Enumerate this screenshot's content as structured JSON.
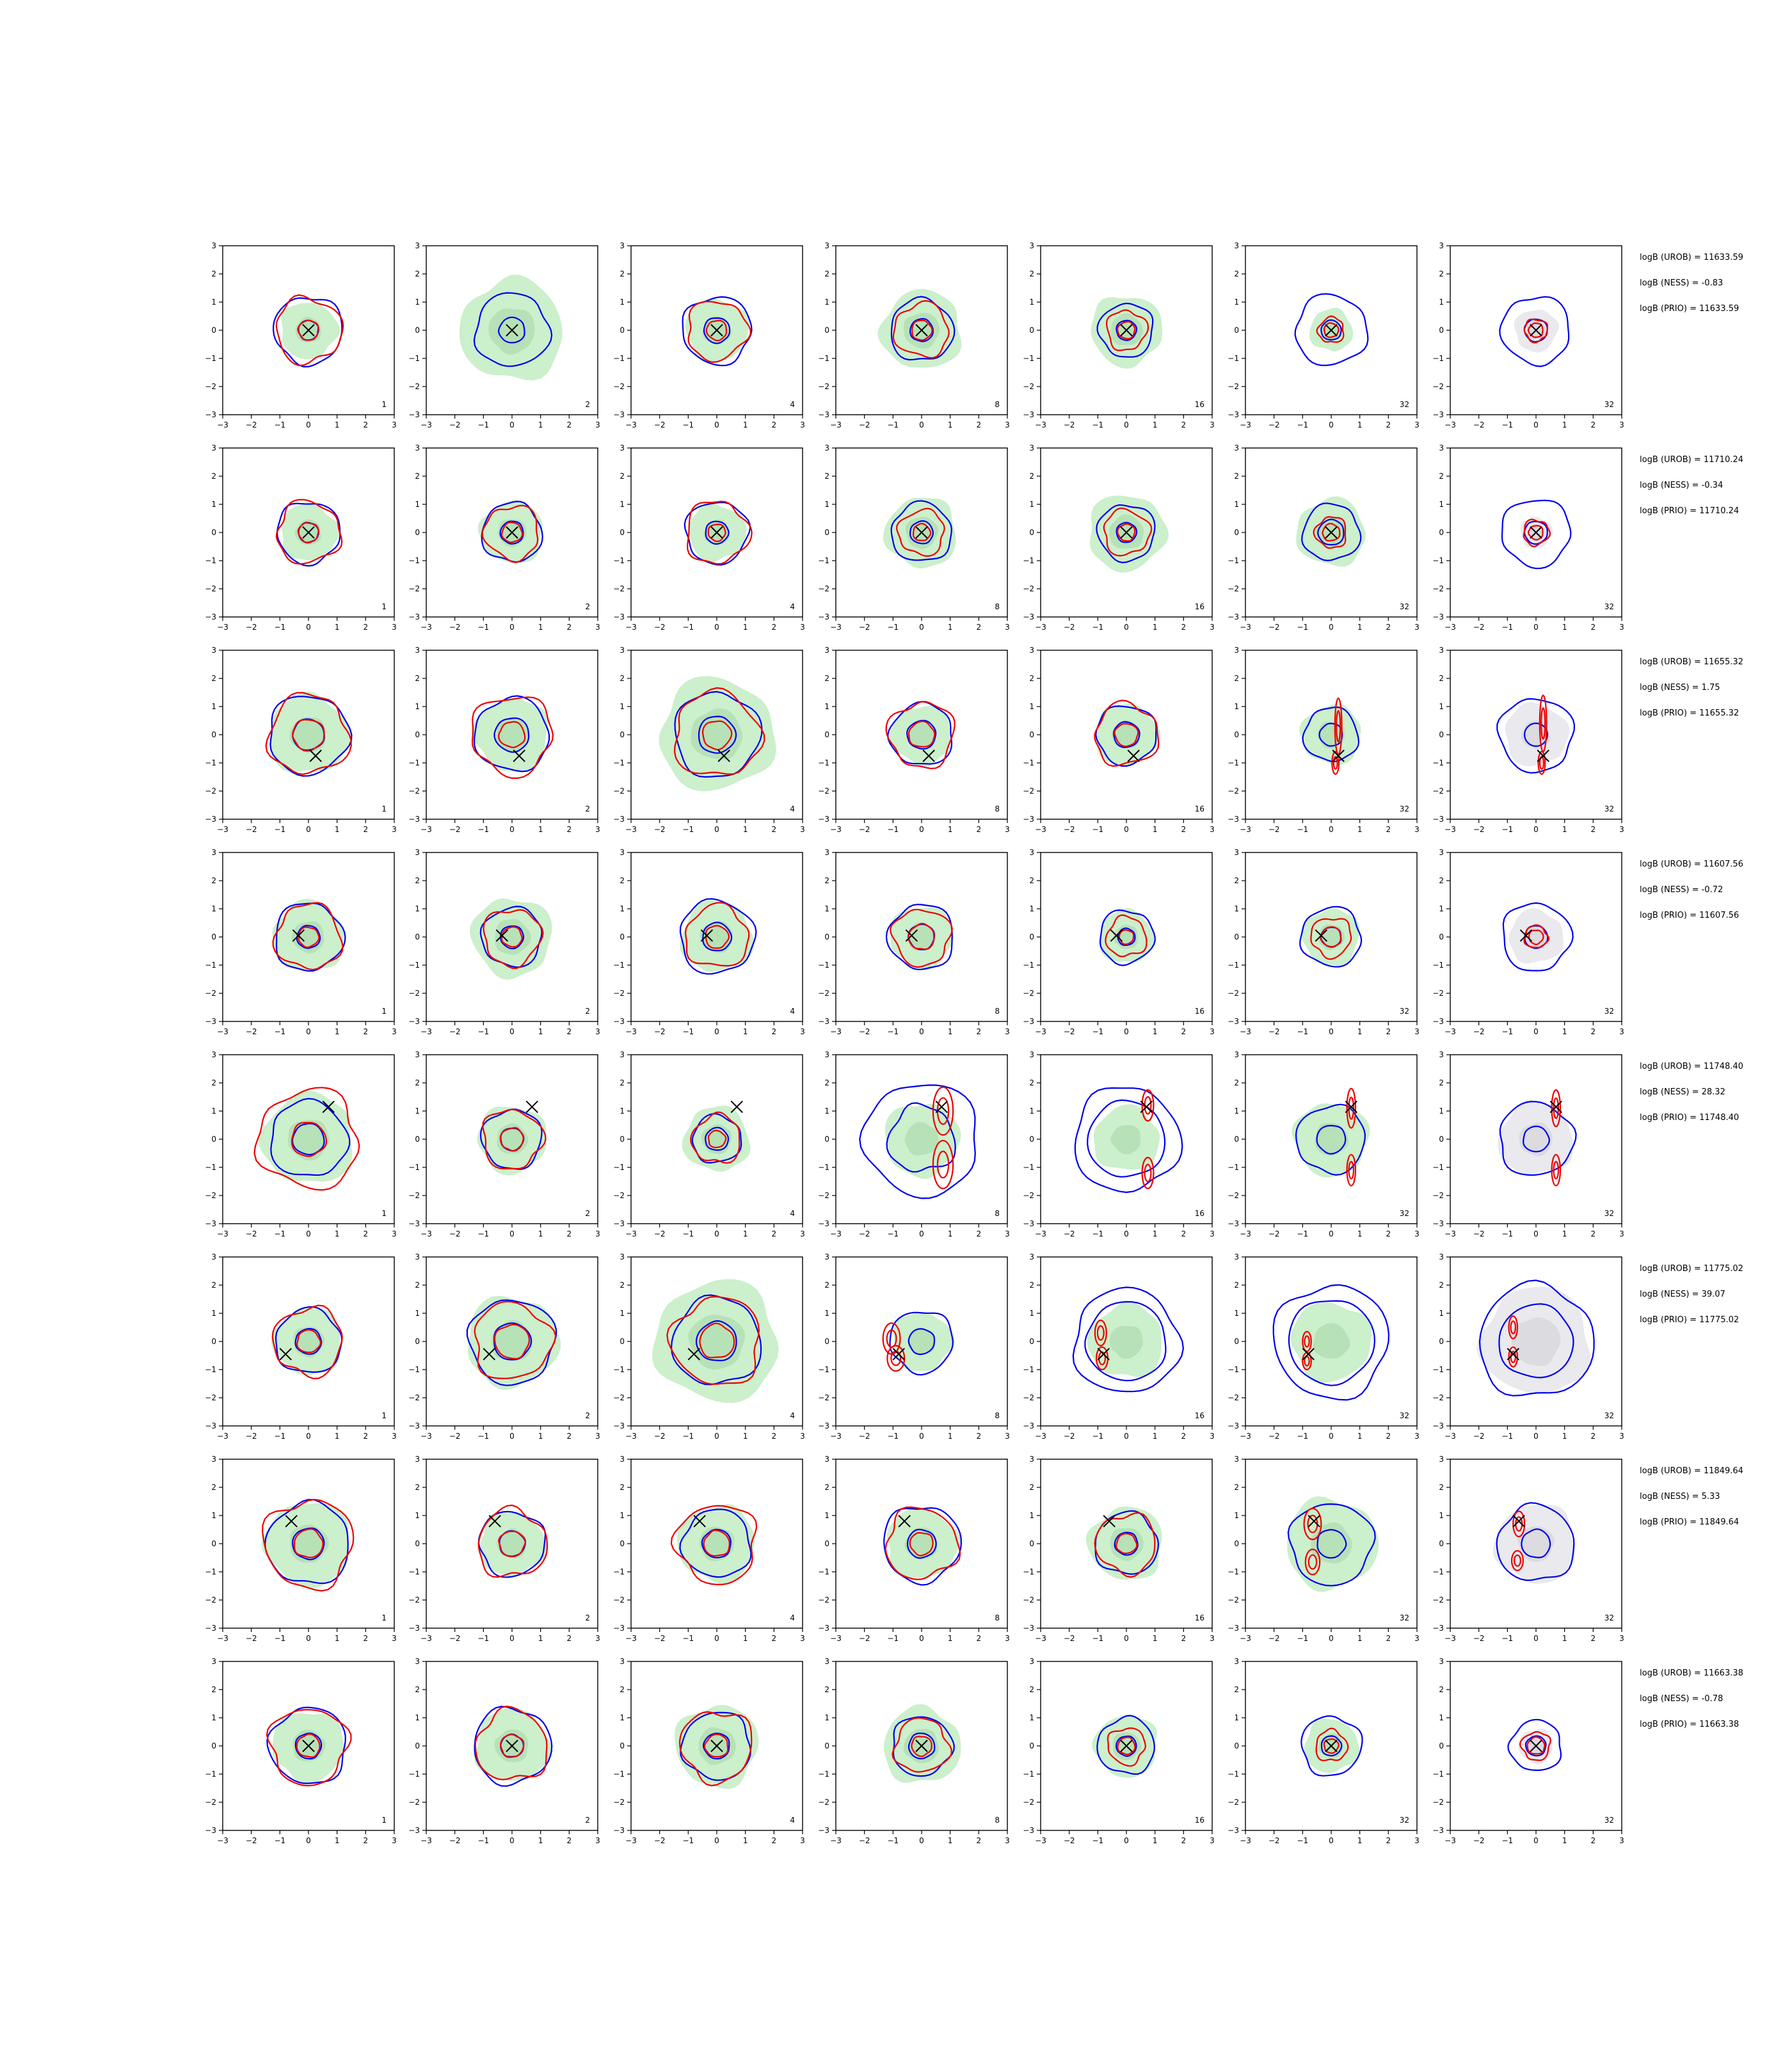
{
  "chart_data": {
    "type": "contour-grid",
    "xlim": [
      -3,
      3
    ],
    "ylim": [
      -3,
      3
    ],
    "xticks": [
      "−3",
      "−2",
      "−1",
      "0",
      "1",
      "2",
      "3"
    ],
    "yticks": [
      "−3",
      "−2",
      "−1",
      "0",
      "1",
      "2",
      "3"
    ],
    "columns": [
      {
        "label": "1"
      },
      {
        "label": "2"
      },
      {
        "label": "4"
      },
      {
        "label": "8"
      },
      {
        "label": "16"
      },
      {
        "label": "32"
      },
      {
        "label": "32",
        "grey": true
      }
    ],
    "colors": {
      "fill_green": "#ccefcc",
      "fill_green_inner": "#aedcae",
      "fill_grey": "#e9e9ee",
      "fill_grey_inner": "#d4d4da",
      "blue": "#0000ee",
      "red": "#ee0000",
      "marker": "#000000"
    },
    "rows": [
      {
        "marker": [
          0.0,
          0.0
        ],
        "stats": [
          "logB (UROB) = 11633.59",
          "logB (NESS) = -0.83",
          "logB (PRIO) = 11633.59"
        ],
        "panels": [
          {
            "green": 1.0,
            "blue": [
              1.2,
              0.35
            ],
            "red": [
              1.15,
              0.35
            ]
          },
          {
            "green": 1.8,
            "blue": [
              1.3,
              0.45
            ],
            "red": []
          },
          {
            "green": 1.1,
            "blue": [
              1.2,
              0.45
            ],
            "red": [
              1.05,
              0.35
            ]
          },
          {
            "green": 1.4,
            "blue": [
              1.1,
              0.4
            ],
            "red": [
              0.95,
              0.35
            ]
          },
          {
            "green": 1.25,
            "blue": [
              0.95,
              0.35
            ],
            "red": [
              0.7,
              0.3
            ]
          },
          {
            "green": 0.75,
            "blue": [
              1.25,
              0.35
            ],
            "red": [
              0.45,
              0.25
            ]
          },
          {
            "green": 0.75,
            "blue": [
              1.2,
              0.4
            ],
            "red": [
              0.4,
              0.25
            ]
          }
        ]
      },
      {
        "marker": [
          0.0,
          0.0
        ],
        "stats": [
          "logB (UROB) = 11710.24",
          "logB (NESS) = -0.34",
          "logB (PRIO) = 11710.24"
        ],
        "panels": [
          {
            "green": 1.0,
            "blue": [
              1.1,
              0.35
            ],
            "red": [
              1.1,
              0.35
            ]
          },
          {
            "green": 1.1,
            "blue": [
              1.05,
              0.4
            ],
            "red": [
              0.95,
              0.35
            ]
          },
          {
            "green": 1.0,
            "blue": [
              1.1,
              0.4
            ],
            "red": [
              1.1,
              0.3
            ]
          },
          {
            "green": 1.25,
            "blue": [
              1.05,
              0.4
            ],
            "red": [
              0.8,
              0.3
            ]
          },
          {
            "green": 1.35,
            "blue": [
              1.0,
              0.35
            ],
            "red": [
              0.8,
              0.3
            ]
          },
          {
            "green": 1.2,
            "blue": [
              1.0,
              0.45
            ],
            "red": [
              0.55,
              0.3
            ]
          },
          {
            "green": 0.55,
            "blue": [
              1.2,
              0.4
            ],
            "red": [
              0.45,
              0.25
            ]
          }
        ]
      },
      {
        "marker": [
          0.25,
          -0.75
        ],
        "stats": [
          "logB (UROB) = 11655.32",
          "logB (NESS) = 1.75",
          "logB (PRIO) = 11655.32"
        ],
        "panels": [
          {
            "green": 1.4,
            "blue": [
              1.4,
              0.55
            ],
            "red": [
              1.4,
              0.55
            ]
          },
          {
            "green": 1.3,
            "blue": [
              1.3,
              0.6
            ],
            "red": [
              1.4,
              0.45
            ]
          },
          {
            "green": 2.0,
            "blue": [
              1.5,
              0.65
            ],
            "red": [
              1.5,
              0.5
            ]
          },
          {
            "green": 1.05,
            "blue": [
              1.1,
              0.5
            ],
            "red": [
              1.15,
              0.45
            ]
          },
          {
            "green": 1.1,
            "blue": [
              1.05,
              0.45
            ],
            "red": [
              1.1,
              0.4
            ]
          },
          {
            "green": 1.05,
            "blue": [
              0.95,
              0.4
            ],
            "red": [],
            "red_ellipses": [
              [
                0.25,
                0.3,
                0.12,
                1.0
              ],
              [
                0.15,
                -1.0,
                0.12,
                0.4
              ]
            ]
          },
          {
            "green": 1.1,
            "blue": [],
            "red": [],
            "blue_small": 0.4,
            "red_ellipses": [
              [
                0.25,
                0.4,
                0.12,
                1.0
              ],
              [
                0.2,
                -1.0,
                0.12,
                0.4
              ]
            ]
          }
        ]
      },
      {
        "marker": [
          -0.35,
          0.05
        ],
        "stats": [
          "logB (UROB) = 11607.56",
          "logB (NESS) = -0.72",
          "logB (PRIO) = 11607.56"
        ],
        "panels": [
          {
            "green": 1.25,
            "blue": [
              1.2,
              0.4
            ],
            "red": [
              1.15,
              0.35
            ]
          },
          {
            "green": 1.4,
            "blue": [
              1.05,
              0.4
            ],
            "red": [
              1.0,
              0.35
            ]
          },
          {
            "green": 1.25,
            "blue": [
              1.3,
              0.5
            ],
            "red": [
              1.1,
              0.4
            ]
          },
          {
            "green": 1.1,
            "blue": [
              1.15,
              0.45
            ],
            "red": [
              1.0,
              0.45
            ]
          },
          {
            "green": 0.95,
            "blue": [
              0.95,
              0.3
            ],
            "red": [
              0.7,
              0.25
            ]
          },
          {
            "green": 1.0,
            "blue": [
              1.05,
              0.35
            ],
            "red": [
              0.7,
              0.35
            ]
          },
          {
            "green": 0.95,
            "blue": [
              1.2,
              0.4
            ],
            "red": [
              0.4,
              0.25
            ]
          }
        ]
      },
      {
        "marker": [
          0.7,
          1.15
        ],
        "stats": [
          "logB (UROB) = 11748.40",
          "logB (NESS) = 28.32",
          "logB (PRIO) = 11748.40"
        ],
        "panels": [
          {
            "green": 1.6,
            "blue": [
              1.35,
              0.55
            ],
            "red": [
              1.75,
              0.6
            ]
          },
          {
            "green": 1.2,
            "blue": [
              1.05,
              0.4
            ],
            "red": [
              1.05,
              0.4
            ]
          },
          {
            "green": 1.15,
            "blue": [
              0.85,
              0.4
            ],
            "red": [
              0.85,
              0.3
            ]
          },
          {
            "green": 1.3,
            "blue": [
              2.0,
              0.0
            ],
            "blue_r2": 1.95,
            "red": [],
            "red_ellipses": [
              [
                0.75,
                1.0,
                0.35,
                0.85
              ],
              [
                0.75,
                -0.9,
                0.35,
                0.85
              ]
            ]
          },
          {
            "green": 1.15,
            "blue": [
              1.85,
              1.35
            ],
            "red": [],
            "red_ellipses": [
              [
                0.75,
                1.2,
                0.2,
                0.55
              ],
              [
                0.75,
                -1.2,
                0.2,
                0.55
              ]
            ]
          },
          {
            "green": 1.3,
            "blue": [
              1.2,
              0.5
            ],
            "red": [],
            "red_ellipses": [
              [
                0.7,
                1.1,
                0.15,
                0.7
              ],
              [
                0.7,
                -1.1,
                0.15,
                0.55
              ]
            ]
          },
          {
            "green": 1.3,
            "blue": [
              1.3,
              0.45
            ],
            "red": [],
            "red_ellipses": [
              [
                0.7,
                1.1,
                0.15,
                0.65
              ],
              [
                0.7,
                -1.1,
                0.15,
                0.55
              ]
            ]
          }
        ]
      },
      {
        "marker": [
          -0.8,
          -0.45
        ],
        "stats": [
          "logB (UROB) = 11775.02",
          "logB (NESS) = 39.07",
          "logB (PRIO) = 11775.02"
        ],
        "panels": [
          {
            "green": 1.2,
            "blue": [
              1.15,
              0.45
            ],
            "red": [
              1.2,
              0.4
            ]
          },
          {
            "green": 1.6,
            "blue": [
              1.5,
              0.65
            ],
            "red": [
              1.35,
              0.6
            ]
          },
          {
            "green": 2.15,
            "blue": [
              1.55,
              0.7
            ],
            "red": [
              1.55,
              0.6
            ]
          },
          {
            "green": 1.05,
            "blue": [
              1.1,
              0.45
            ],
            "red": [],
            "red_ellipses": [
              [
                -1.05,
                0.1,
                0.3,
                0.55
              ],
              [
                -0.9,
                -0.6,
                0.3,
                0.45
              ]
            ]
          },
          {
            "green": 1.3,
            "blue": [
              1.85,
              1.4
            ],
            "red": [],
            "red_ellipses": [
              [
                -0.9,
                0.3,
                0.2,
                0.45
              ],
              [
                -0.85,
                -0.6,
                0.2,
                0.4
              ]
            ]
          },
          {
            "green": 1.4,
            "blue": [
              2.0,
              1.5
            ],
            "red": [],
            "red_ellipses": [
              [
                -0.85,
                0.0,
                0.15,
                0.35
              ],
              [
                -0.85,
                -0.7,
                0.15,
                0.3
              ]
            ]
          },
          {
            "green": 1.9,
            "blue": [
              2.0,
              1.3
            ],
            "red": [],
            "red_ellipses": [
              [
                -0.8,
                0.5,
                0.15,
                0.4
              ],
              [
                -0.8,
                -0.55,
                0.15,
                0.35
              ]
            ]
          }
        ]
      },
      {
        "marker": [
          -0.6,
          0.8
        ],
        "stats": [
          "logB (UROB) = 11849.64",
          "logB (NESS) = 5.33",
          "logB (PRIO) = 11849.64"
        ],
        "panels": [
          {
            "green": 1.5,
            "blue": [
              1.45,
              0.55
            ],
            "red": [
              1.55,
              0.5
            ]
          },
          {
            "green": 1.15,
            "blue": [
              1.15,
              0.45
            ],
            "red": [
              1.2,
              0.45
            ]
          },
          {
            "green": 1.35,
            "blue": [
              1.2,
              0.5
            ],
            "red": [
              1.4,
              0.45
            ]
          },
          {
            "green": 1.25,
            "blue": [
              1.35,
              0.5
            ],
            "red": [
              1.25,
              0.4
            ]
          },
          {
            "green": 1.3,
            "blue": [
              1.1,
              0.4
            ],
            "red": [
              1.05,
              0.35
            ]
          },
          {
            "green": 1.6,
            "blue": [
              1.45,
              0.5
            ],
            "red": [],
            "red_ellipses": [
              [
                -0.65,
                0.7,
                0.3,
                0.55
              ],
              [
                -0.65,
                -0.65,
                0.25,
                0.45
              ]
            ]
          },
          {
            "green": 1.4,
            "blue": [
              1.35,
              0.5
            ],
            "red": [],
            "red_ellipses": [
              [
                -0.6,
                0.7,
                0.2,
                0.45
              ],
              [
                -0.65,
                -0.6,
                0.2,
                0.35
              ]
            ]
          }
        ]
      },
      {
        "marker": [
          0.0,
          0.0
        ],
        "stats": [
          "logB (UROB) = 11663.38",
          "logB (NESS) = -0.78",
          "logB (PRIO) = 11663.38"
        ],
        "panels": [
          {
            "green": 1.25,
            "blue": [
              1.35,
              0.45
            ],
            "red": [
              1.35,
              0.4
            ]
          },
          {
            "green": 1.3,
            "blue": [
              1.35,
              0.4
            ],
            "red": [
              1.25,
              0.4
            ]
          },
          {
            "green": 1.45,
            "blue": [
              1.2,
              0.45
            ],
            "red": [
              1.25,
              0.4
            ]
          },
          {
            "green": 1.35,
            "blue": [
              1.05,
              0.45
            ],
            "red": [
              0.95,
              0.35
            ]
          },
          {
            "green": 1.1,
            "blue": [
              1.0,
              0.35
            ],
            "red": [
              0.65,
              0.3
            ]
          },
          {
            "green": 0.95,
            "blue": [
              1.05,
              0.35
            ],
            "red": [
              0.55,
              0.25
            ]
          },
          {
            "green": 0.6,
            "blue": [
              0.9,
              0.35
            ],
            "red": [
              0.5,
              0.3
            ]
          }
        ]
      }
    ]
  }
}
